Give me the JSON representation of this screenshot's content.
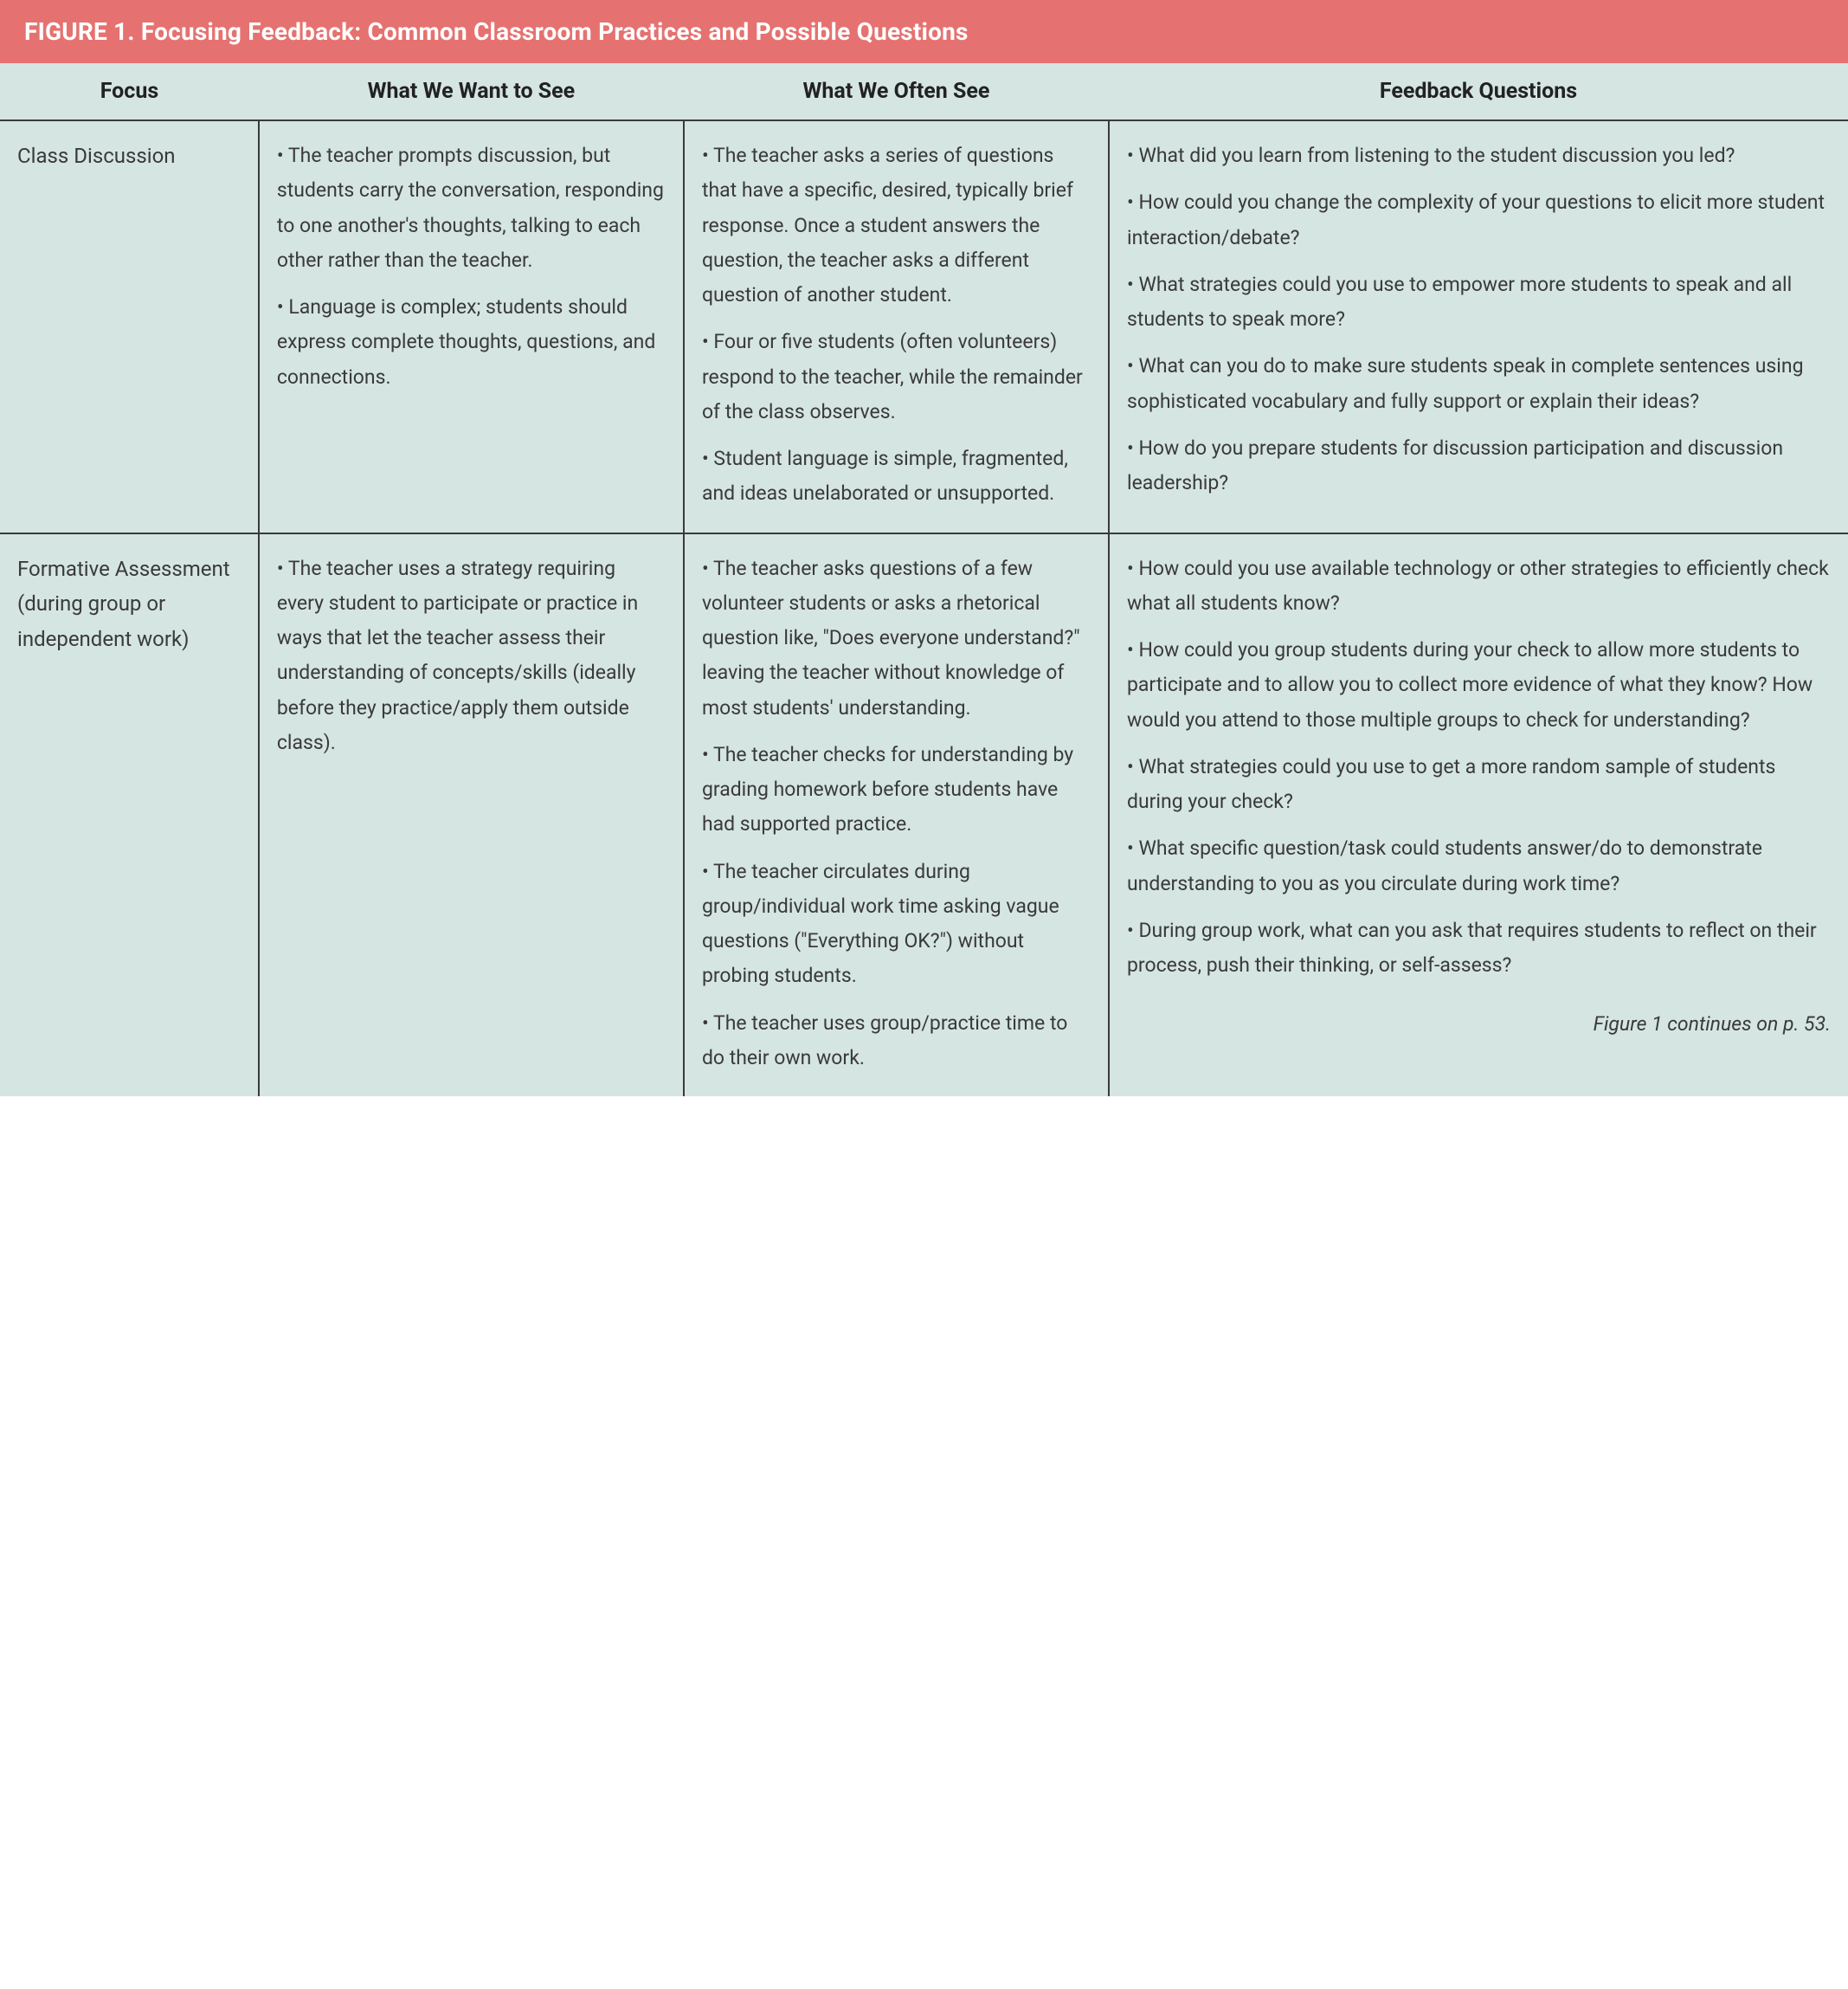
{
  "figure": {
    "title": "FIGURE 1. Focusing Feedback: Common Classroom Practices and Possible Questions",
    "columns": [
      "Focus",
      "What We Want to See",
      "What We Often See",
      "Feedback Questions"
    ],
    "continues_note": "Figure 1 continues on p. 53.",
    "colors": {
      "title_bg": "#e57270",
      "title_text": "#ffffff",
      "table_bg": "#d5e5e2",
      "border": "#3a3a3a",
      "body_text": "#3a3a3a"
    },
    "rows": [
      {
        "focus": "Class Discussion",
        "want": [
          "The teacher prompts discussion, but students carry the conversation, responding to one another's thoughts, talking to each other rather than the teacher.",
          "Language is complex; students should express complete thoughts, questions, and connections."
        ],
        "often": [
          "The teacher asks a series of questions that have a specific, desired, typically brief response. Once a student answers the question, the teacher asks a different question of another student.",
          "Four or five students (often volunteers) respond to the teacher, while the remainder of the class observes.",
          "Student language is simple, fragmented, and ideas unelaborated or unsupported."
        ],
        "feedback": [
          "What did you learn from listening to the student discussion you led?",
          "How could you change the complexity of your questions to elicit more student interaction/debate?",
          "What strategies could you use to empower more students to speak and all students to speak more?",
          "What can you do to make sure students speak in complete sentences using sophisticated vocabulary and fully support or explain their ideas?",
          "How do you prepare students for discussion participation and discussion leadership?"
        ]
      },
      {
        "focus": "Formative Assessment (during group or independent work)",
        "want": [
          "The teacher uses a strategy requiring every student to participate or practice in ways that let the teacher assess their understanding of concepts/skills (ideally before they practice/apply them outside class)."
        ],
        "often": [
          "The teacher asks questions of a few volunteer students or asks a rhetorical question like, \"Does everyone understand?\" leaving the teacher without knowledge of most students' understanding.",
          "The teacher checks for understanding by grading homework before students have had supported practice.",
          "The teacher circulates during group/individual work time asking vague questions (\"Everything OK?\") without probing students.",
          "The teacher uses group/practice time to do their own work."
        ],
        "feedback": [
          "How could you use available technology or other strategies to efficiently check what all students know?",
          "How could you group students during your check to allow more students to participate and to allow you to collect more evidence of what they know? How would you attend to those multiple groups to check for understanding?",
          "What strategies could you use to get a more random sample of students during your check?",
          "What specific question/task could students answer/do to demonstrate understanding to you as you circulate during work time?",
          "During group work, what can you ask that requires students to reflect on their process, push their thinking, or self-assess?"
        ]
      }
    ]
  }
}
